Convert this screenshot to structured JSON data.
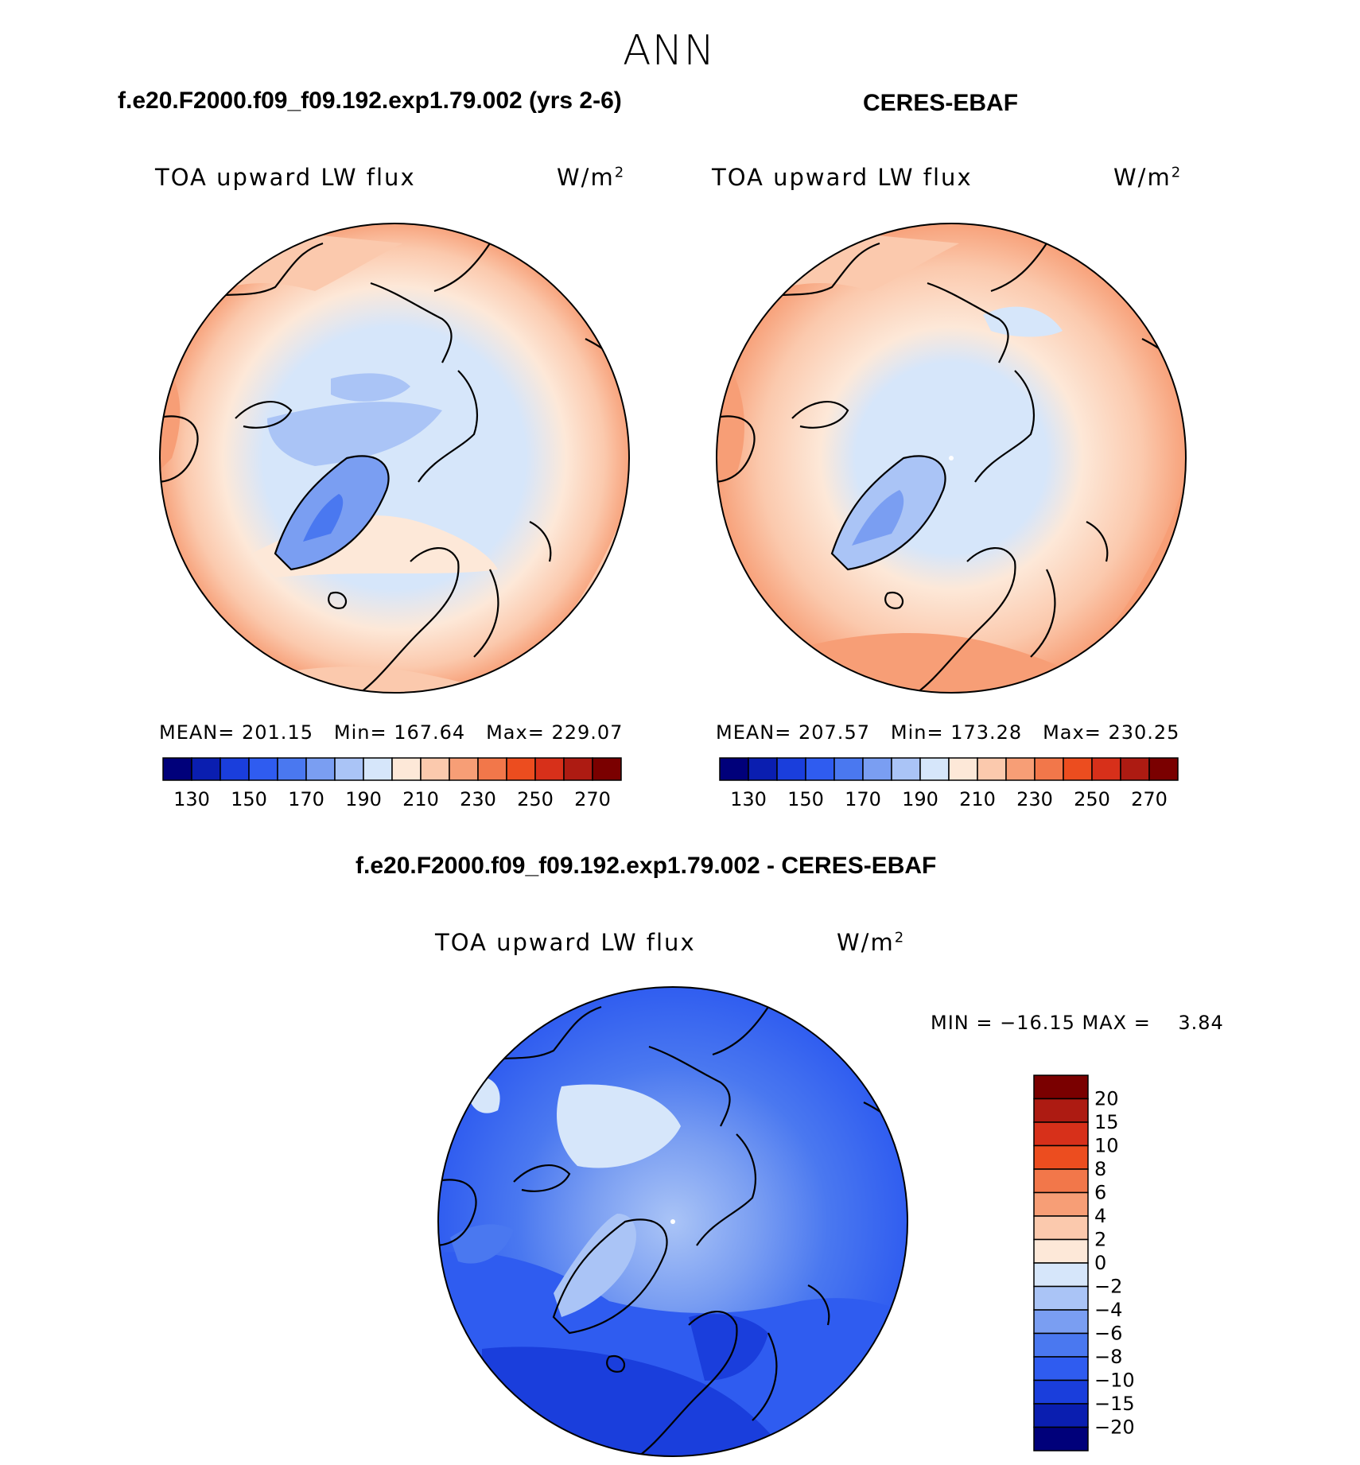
{
  "title": "ANN",
  "panels": {
    "test": {
      "title": "f.e20.F2000.f09_f09.192.exp1.79.002 (yrs 2-6)",
      "variable": "TOA upward LW flux",
      "units": "W/m",
      "units_sup": "2",
      "stats": {
        "mean_label": "MEAN=",
        "mean": "201.15",
        "min_label": "Min=",
        "min": "167.64",
        "max_label": "Max=",
        "max": "229.07"
      }
    },
    "ctrl": {
      "title": "CERES-EBAF",
      "variable": "TOA upward LW flux",
      "units": "W/m",
      "units_sup": "2",
      "stats": {
        "mean_label": "MEAN=",
        "mean": "207.57",
        "min_label": "Min=",
        "min": "173.28",
        "max_label": "Max=",
        "max": "230.25"
      }
    },
    "diff": {
      "title": "f.e20.F2000.f09_f09.192.exp1.79.002 - CERES-EBAF",
      "variable": "TOA upward LW flux",
      "units": "W/m",
      "units_sup": "2",
      "stats_text": "MIN = −16.15 MAX =    3.84"
    }
  },
  "chart_data": [
    {
      "type": "heatmap",
      "projection": "north-polar-stereographic",
      "title": "f.e20.F2000.f09_f09.192.exp1.79.002 (yrs 2-6)",
      "variable": "TOA upward LW flux",
      "units": "W/m2",
      "mean": 201.15,
      "min": 167.64,
      "max": 229.07,
      "colorbar": {
        "orientation": "horizontal",
        "tick_labels": [
          "130",
          "150",
          "170",
          "190",
          "210",
          "230",
          "250",
          "270"
        ],
        "colors": [
          "#00007a",
          "#0a1eb0",
          "#1a3edc",
          "#2f5cf0",
          "#4a78f0",
          "#7a9ef2",
          "#aac4f6",
          "#d6e6fa",
          "#fde8d8",
          "#fbc9ad",
          "#f79e76",
          "#f2774a",
          "#ec4d1f",
          "#d7301a",
          "#ad1b12",
          "#7a0000"
        ]
      }
    },
    {
      "type": "heatmap",
      "projection": "north-polar-stereographic",
      "title": "CERES-EBAF",
      "variable": "TOA upward LW flux",
      "units": "W/m2",
      "mean": 207.57,
      "min": 173.28,
      "max": 230.25,
      "colorbar": {
        "orientation": "horizontal",
        "tick_labels": [
          "130",
          "150",
          "170",
          "190",
          "210",
          "230",
          "250",
          "270"
        ],
        "colors": [
          "#00007a",
          "#0a1eb0",
          "#1a3edc",
          "#2f5cf0",
          "#4a78f0",
          "#7a9ef2",
          "#aac4f6",
          "#d6e6fa",
          "#fde8d8",
          "#fbc9ad",
          "#f79e76",
          "#f2774a",
          "#ec4d1f",
          "#d7301a",
          "#ad1b12",
          "#7a0000"
        ]
      }
    },
    {
      "type": "heatmap",
      "projection": "north-polar-stereographic",
      "title": "f.e20.F2000.f09_f09.192.exp1.79.002 - CERES-EBAF",
      "variable": "TOA upward LW flux",
      "units": "W/m2",
      "min": -16.15,
      "max": 3.84,
      "colorbar": {
        "orientation": "vertical",
        "tick_labels": [
          "20",
          "15",
          "10",
          "8",
          "6",
          "4",
          "2",
          "0",
          "−2",
          "−4",
          "−6",
          "−8",
          "−10",
          "−15",
          "−20"
        ],
        "colors": [
          "#7a0000",
          "#ad1b12",
          "#d7301a",
          "#ec4d1f",
          "#f2774a",
          "#f79e76",
          "#fbc9ad",
          "#fde8d8",
          "#d6e6fa",
          "#aac4f6",
          "#7a9ef2",
          "#4a78f0",
          "#2f5cf0",
          "#1a3edc",
          "#0a1eb0",
          "#00007a"
        ]
      }
    }
  ]
}
